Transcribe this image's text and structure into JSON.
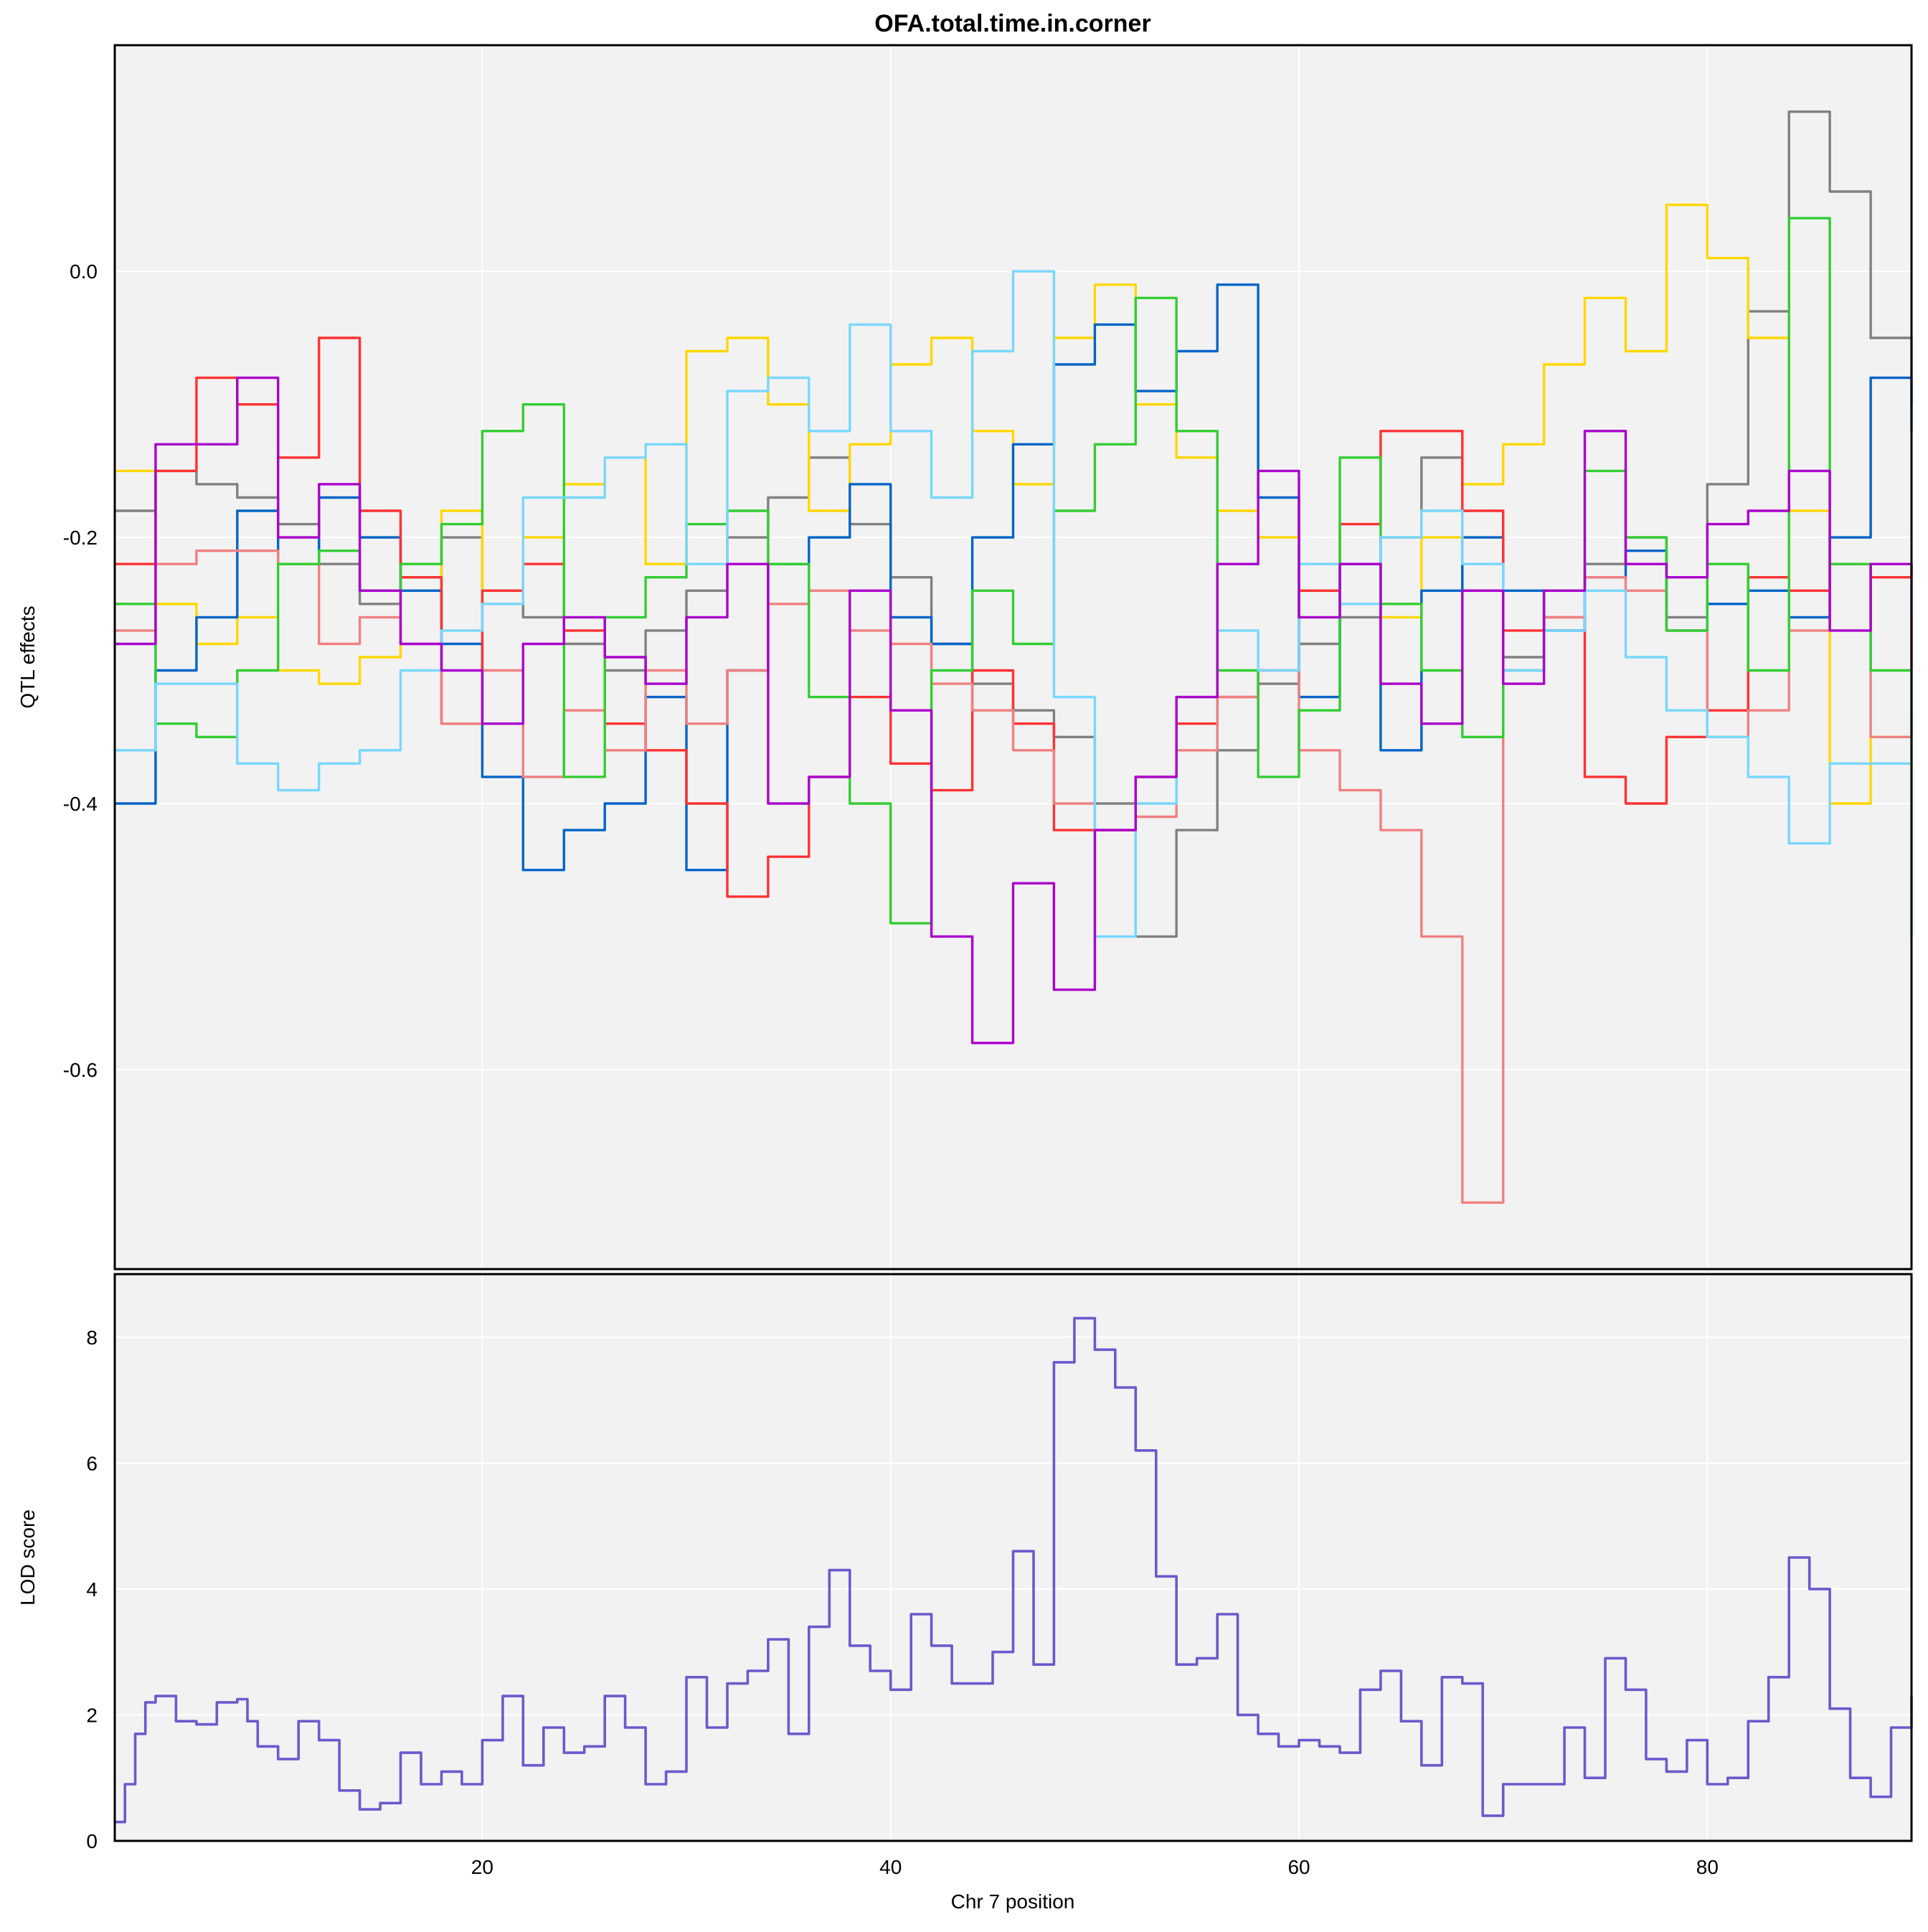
{
  "chart_data": [
    {
      "type": "line",
      "panel": "top",
      "title": "OFA.total.time.in.corner",
      "xlabel": "",
      "ylabel": "QTL effects",
      "xlim": [
        2,
        90
      ],
      "ylim": [
        -0.75,
        0.17
      ],
      "yticks": [
        0.0,
        -0.2,
        -0.4,
        -0.6
      ],
      "ytick_labels": [
        "0.0",
        "-0.2",
        "-0.4",
        "-0.6"
      ],
      "xticks": [
        20,
        40,
        60,
        80
      ],
      "grid": true,
      "background": "#f2f2f2",
      "series": [
        {
          "name": "gray",
          "color": "#808080",
          "x": [
            2,
            4,
            6,
            8,
            10,
            12,
            14,
            16,
            18,
            20,
            22,
            24,
            26,
            28,
            30,
            32,
            34,
            36,
            38,
            40,
            42,
            44,
            46,
            48,
            50,
            52,
            54,
            56,
            58,
            60,
            62,
            64,
            66,
            68,
            70,
            72,
            74,
            76,
            78,
            80,
            82,
            84,
            86,
            88,
            90
          ],
          "y": [
            -0.18,
            -0.15,
            -0.16,
            -0.17,
            -0.19,
            -0.22,
            -0.25,
            -0.23,
            -0.2,
            -0.24,
            -0.26,
            -0.28,
            -0.3,
            -0.27,
            -0.24,
            -0.2,
            -0.17,
            -0.14,
            -0.19,
            -0.23,
            -0.28,
            -0.31,
            -0.33,
            -0.35,
            -0.4,
            -0.5,
            -0.42,
            -0.36,
            -0.31,
            -0.28,
            -0.26,
            -0.2,
            -0.14,
            -0.24,
            -0.29,
            -0.27,
            -0.22,
            -0.2,
            -0.26,
            -0.16,
            -0.03,
            0.12,
            0.06,
            -0.05,
            -0.1
          ]
        },
        {
          "name": "yellow",
          "color": "#ffd700",
          "x": [
            2,
            4,
            6,
            8,
            10,
            12,
            14,
            16,
            18,
            20,
            22,
            24,
            26,
            28,
            30,
            32,
            34,
            36,
            38,
            40,
            42,
            44,
            46,
            48,
            50,
            52,
            54,
            56,
            58,
            60,
            62,
            64,
            66,
            68,
            70,
            72,
            74,
            76,
            78,
            80,
            82,
            84,
            86,
            88,
            90
          ],
          "y": [
            -0.15,
            -0.25,
            -0.28,
            -0.26,
            -0.3,
            -0.31,
            -0.29,
            -0.24,
            -0.18,
            -0.25,
            -0.2,
            -0.16,
            -0.14,
            -0.22,
            -0.06,
            -0.05,
            -0.1,
            -0.18,
            -0.13,
            -0.07,
            -0.05,
            -0.12,
            -0.16,
            -0.05,
            -0.01,
            -0.1,
            -0.14,
            -0.18,
            -0.2,
            -0.24,
            -0.22,
            -0.26,
            -0.2,
            -0.16,
            -0.13,
            -0.07,
            -0.02,
            -0.06,
            0.05,
            0.01,
            -0.05,
            -0.18,
            -0.4,
            -0.35,
            -0.26
          ]
        },
        {
          "name": "blue",
          "color": "#0064c8",
          "x": [
            2,
            4,
            6,
            8,
            10,
            12,
            14,
            16,
            18,
            20,
            22,
            24,
            26,
            28,
            30,
            32,
            34,
            36,
            38,
            40,
            42,
            44,
            46,
            48,
            50,
            52,
            54,
            56,
            58,
            60,
            62,
            64,
            66,
            68,
            70,
            72,
            74,
            76,
            78,
            80,
            82,
            84,
            86,
            88,
            90
          ],
          "y": [
            -0.4,
            -0.3,
            -0.26,
            -0.18,
            -0.22,
            -0.17,
            -0.2,
            -0.24,
            -0.28,
            -0.38,
            -0.45,
            -0.42,
            -0.4,
            -0.32,
            -0.45,
            -0.3,
            -0.22,
            -0.2,
            -0.16,
            -0.26,
            -0.28,
            -0.2,
            -0.13,
            -0.07,
            -0.04,
            -0.09,
            -0.06,
            -0.01,
            -0.17,
            -0.32,
            -0.22,
            -0.36,
            -0.24,
            -0.2,
            -0.24,
            -0.27,
            -0.23,
            -0.21,
            -0.27,
            -0.25,
            -0.24,
            -0.26,
            -0.2,
            -0.08,
            -0.12
          ]
        },
        {
          "name": "red",
          "color": "#ff3232",
          "x": [
            2,
            4,
            6,
            8,
            10,
            12,
            14,
            16,
            18,
            20,
            22,
            24,
            26,
            28,
            30,
            32,
            34,
            36,
            38,
            40,
            42,
            44,
            46,
            48,
            50,
            52,
            54,
            56,
            58,
            60,
            62,
            64,
            66,
            68,
            70,
            72,
            74,
            76,
            78,
            80,
            82,
            84,
            86,
            88,
            90
          ],
          "y": [
            -0.22,
            -0.15,
            -0.08,
            -0.1,
            -0.14,
            -0.05,
            -0.18,
            -0.23,
            -0.34,
            -0.24,
            -0.22,
            -0.27,
            -0.34,
            -0.36,
            -0.4,
            -0.47,
            -0.44,
            -0.38,
            -0.32,
            -0.37,
            -0.39,
            -0.3,
            -0.34,
            -0.42,
            -0.42,
            -0.38,
            -0.34,
            -0.32,
            -0.3,
            -0.24,
            -0.19,
            -0.12,
            -0.12,
            -0.18,
            -0.27,
            -0.26,
            -0.38,
            -0.4,
            -0.35,
            -0.33,
            -0.23,
            -0.24,
            -0.22,
            -0.23,
            -0.22
          ]
        },
        {
          "name": "salmon",
          "color": "#f08080",
          "x": [
            2,
            4,
            6,
            8,
            10,
            12,
            14,
            16,
            18,
            20,
            22,
            24,
            26,
            28,
            30,
            32,
            34,
            36,
            38,
            40,
            42,
            44,
            46,
            48,
            50,
            52,
            54,
            56,
            58,
            60,
            62,
            64,
            66,
            68,
            70,
            72,
            74,
            76,
            78,
            80,
            82,
            84,
            86,
            88,
            90
          ],
          "y": [
            -0.27,
            -0.22,
            -0.21,
            -0.21,
            -0.22,
            -0.28,
            -0.26,
            -0.28,
            -0.34,
            -0.3,
            -0.38,
            -0.33,
            -0.36,
            -0.3,
            -0.34,
            -0.3,
            -0.25,
            -0.24,
            -0.27,
            -0.28,
            -0.31,
            -0.33,
            -0.36,
            -0.4,
            -0.42,
            -0.41,
            -0.36,
            -0.32,
            -0.3,
            -0.36,
            -0.39,
            -0.42,
            -0.5,
            -0.7,
            -0.3,
            -0.26,
            -0.23,
            -0.24,
            -0.27,
            -0.35,
            -0.33,
            -0.27,
            -0.22,
            -0.35,
            -0.33
          ]
        },
        {
          "name": "green",
          "color": "#32cd32",
          "x": [
            2,
            4,
            6,
            8,
            10,
            12,
            14,
            16,
            18,
            20,
            22,
            24,
            26,
            28,
            30,
            32,
            34,
            36,
            38,
            40,
            42,
            44,
            46,
            48,
            50,
            52,
            54,
            56,
            58,
            60,
            62,
            64,
            66,
            68,
            70,
            72,
            74,
            76,
            78,
            80,
            82,
            84,
            86,
            88,
            90
          ],
          "y": [
            -0.25,
            -0.34,
            -0.35,
            -0.3,
            -0.22,
            -0.21,
            -0.24,
            -0.22,
            -0.19,
            -0.12,
            -0.1,
            -0.38,
            -0.26,
            -0.23,
            -0.19,
            -0.18,
            -0.22,
            -0.32,
            -0.4,
            -0.49,
            -0.3,
            -0.24,
            -0.28,
            -0.18,
            -0.13,
            -0.02,
            -0.12,
            -0.3,
            -0.38,
            -0.33,
            -0.14,
            -0.25,
            -0.3,
            -0.35,
            -0.3,
            -0.24,
            -0.15,
            -0.2,
            -0.27,
            -0.22,
            -0.3,
            0.04,
            -0.22,
            -0.3,
            -0.5
          ]
        },
        {
          "name": "lightblue",
          "color": "#78d7ff",
          "x": [
            2,
            4,
            6,
            8,
            10,
            12,
            14,
            16,
            18,
            20,
            22,
            24,
            26,
            28,
            30,
            32,
            34,
            36,
            38,
            40,
            42,
            44,
            46,
            48,
            50,
            52,
            54,
            56,
            58,
            60,
            62,
            64,
            66,
            68,
            70,
            72,
            74,
            76,
            78,
            80,
            82,
            84,
            86,
            88,
            90
          ],
          "y": [
            -0.36,
            -0.31,
            -0.31,
            -0.37,
            -0.39,
            -0.37,
            -0.36,
            -0.3,
            -0.27,
            -0.25,
            -0.17,
            -0.17,
            -0.14,
            -0.13,
            -0.22,
            -0.09,
            -0.08,
            -0.12,
            -0.04,
            -0.12,
            -0.17,
            -0.06,
            0.0,
            -0.32,
            -0.5,
            -0.4,
            -0.32,
            -0.27,
            -0.3,
            -0.22,
            -0.25,
            -0.2,
            -0.18,
            -0.22,
            -0.3,
            -0.27,
            -0.24,
            -0.29,
            -0.33,
            -0.35,
            -0.38,
            -0.43,
            -0.37,
            -0.37,
            -0.3
          ]
        },
        {
          "name": "purple",
          "color": "#aa00cc",
          "x": [
            2,
            4,
            6,
            8,
            10,
            12,
            14,
            16,
            18,
            20,
            22,
            24,
            26,
            28,
            30,
            32,
            34,
            36,
            38,
            40,
            42,
            44,
            46,
            48,
            50,
            52,
            54,
            56,
            58,
            60,
            62,
            64,
            66,
            68,
            70,
            72,
            74,
            76,
            78,
            80,
            82,
            84,
            86,
            88,
            90
          ],
          "y": [
            -0.28,
            -0.13,
            -0.13,
            -0.08,
            -0.2,
            -0.16,
            -0.24,
            -0.28,
            -0.3,
            -0.34,
            -0.28,
            -0.26,
            -0.29,
            -0.31,
            -0.26,
            -0.22,
            -0.4,
            -0.38,
            -0.24,
            -0.33,
            -0.5,
            -0.58,
            -0.46,
            -0.54,
            -0.42,
            -0.38,
            -0.32,
            -0.22,
            -0.15,
            -0.26,
            -0.22,
            -0.31,
            -0.34,
            -0.24,
            -0.31,
            -0.24,
            -0.12,
            -0.22,
            -0.23,
            -0.19,
            -0.18,
            -0.15,
            -0.27,
            -0.22,
            -0.3
          ]
        }
      ]
    },
    {
      "type": "line",
      "panel": "bottom",
      "title": "",
      "xlabel": "Chr 7 position",
      "ylabel": "LOD score",
      "xlim": [
        2,
        90
      ],
      "ylim": [
        0,
        9
      ],
      "yticks": [
        0,
        2,
        4,
        6,
        8
      ],
      "ytick_labels": [
        "0",
        "2",
        "4",
        "6",
        "8"
      ],
      "xticks": [
        20,
        40,
        60,
        80
      ],
      "xtick_labels": [
        "20",
        "40",
        "60",
        "80"
      ],
      "grid": true,
      "background": "#f2f2f2",
      "series": [
        {
          "name": "LOD",
          "color": "#6a5acd",
          "x": [
            2,
            2.5,
            3,
            3.5,
            4,
            5,
            6,
            7,
            8,
            8.5,
            9,
            10,
            11,
            12,
            13,
            14,
            15,
            16,
            17,
            18,
            19,
            20,
            21,
            22,
            23,
            24,
            25,
            26,
            27,
            28,
            29,
            30,
            31,
            32,
            33,
            34,
            35,
            36,
            37,
            38,
            39,
            40,
            41,
            42,
            43,
            44,
            45,
            46,
            47,
            48,
            49,
            50,
            51,
            52,
            53,
            54,
            55,
            56,
            57,
            58,
            59,
            60,
            61,
            62,
            63,
            64,
            65,
            66,
            67,
            68,
            69,
            70,
            71,
            72,
            73,
            74,
            75,
            76,
            77,
            78,
            79,
            80,
            81,
            82,
            83,
            84,
            85,
            86,
            87,
            88,
            89,
            90
          ],
          "y": [
            0.3,
            0.9,
            1.7,
            2.2,
            2.3,
            1.9,
            1.85,
            2.2,
            2.25,
            1.9,
            1.5,
            1.3,
            1.9,
            1.6,
            0.8,
            0.5,
            0.6,
            1.4,
            0.9,
            1.1,
            0.9,
            1.6,
            2.3,
            1.2,
            1.8,
            1.4,
            1.5,
            2.3,
            1.8,
            0.9,
            1.1,
            2.6,
            1.8,
            2.5,
            2.7,
            3.2,
            1.7,
            3.4,
            4.3,
            3.1,
            2.7,
            2.4,
            3.6,
            3.1,
            2.5,
            2.5,
            3.0,
            4.6,
            2.8,
            7.6,
            8.3,
            7.8,
            7.2,
            6.2,
            4.2,
            2.8,
            2.9,
            3.6,
            2.0,
            1.7,
            1.5,
            1.6,
            1.5,
            1.4,
            2.4,
            2.7,
            1.9,
            1.2,
            2.6,
            2.5,
            0.4,
            0.9,
            0.9,
            0.9,
            1.8,
            1.0,
            2.9,
            2.4,
            1.3,
            1.1,
            1.6,
            0.9,
            1.0,
            1.9,
            2.6,
            4.5,
            4.0,
            2.1,
            1.0,
            0.7,
            1.8,
            2.3
          ]
        }
      ]
    }
  ]
}
